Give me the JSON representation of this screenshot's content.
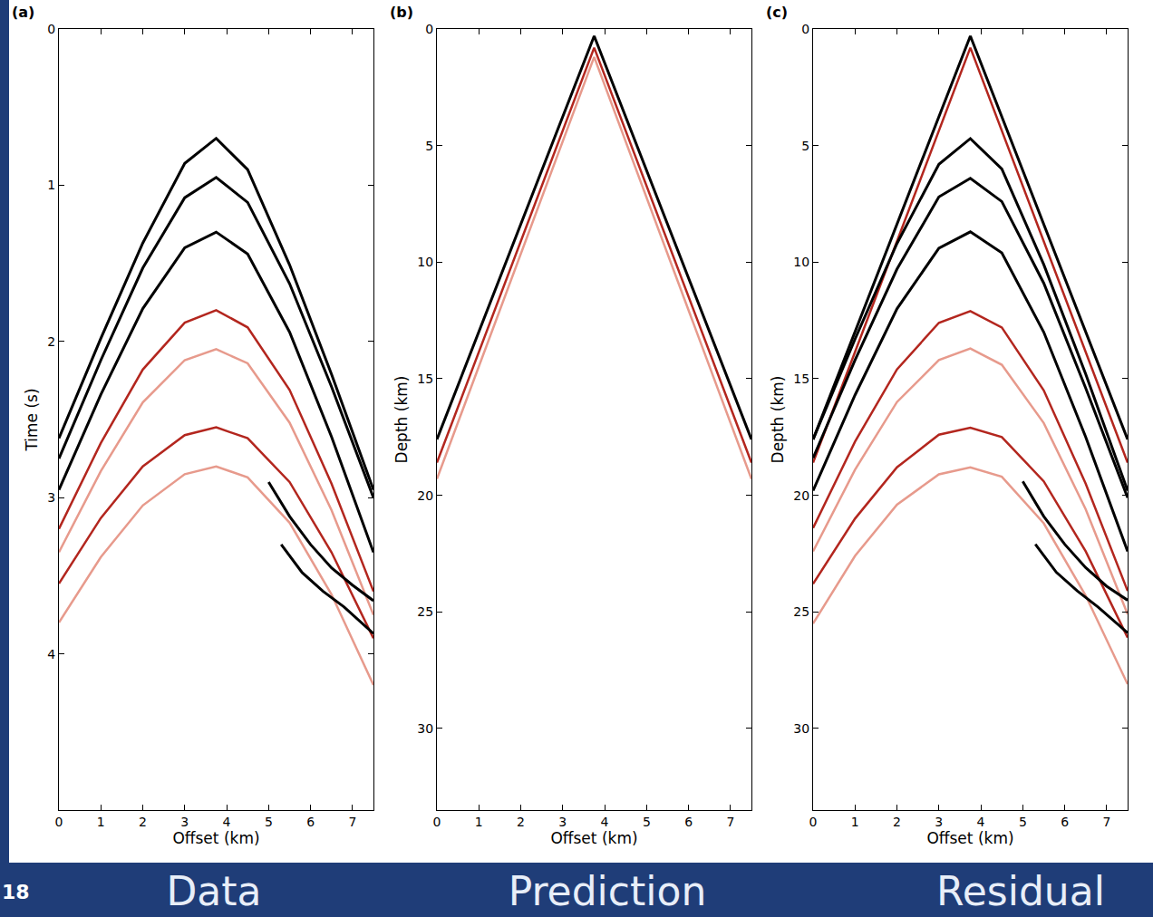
{
  "chart_data": [
    {
      "type": "line",
      "panel_label": "(a)",
      "caption": "Data",
      "x_label": "Offset (km)",
      "y_label": "Time (s)",
      "xlim": [
        0,
        7.5
      ],
      "ylim": [
        5,
        0
      ],
      "xticks": [
        0,
        1,
        2,
        3,
        4,
        5,
        6,
        7
      ],
      "yticks": [
        0,
        1,
        2,
        3,
        4
      ],
      "series": [
        {
          "color": "#000000",
          "x": [
            0,
            1,
            2,
            3,
            3.75,
            4.5,
            5.5,
            6.5,
            7.5
          ],
          "values": [
            2.62,
            1.98,
            1.37,
            0.86,
            0.7,
            0.9,
            1.51,
            2.21,
            2.95
          ]
        },
        {
          "color": "#000000",
          "x": [
            0,
            1,
            2,
            3,
            3.75,
            4.5,
            5.5,
            6.5,
            7.5
          ],
          "values": [
            2.75,
            2.12,
            1.53,
            1.08,
            0.95,
            1.11,
            1.63,
            2.29,
            3.0
          ]
        },
        {
          "color": "#000000",
          "x": [
            0,
            1,
            2,
            3,
            3.75,
            4.5,
            5.5,
            6.5,
            7.5
          ],
          "values": [
            2.95,
            2.34,
            1.79,
            1.4,
            1.3,
            1.44,
            1.94,
            2.61,
            3.35
          ]
        },
        {
          "color": "#b3261e",
          "x": [
            0,
            1,
            2,
            3,
            3.75,
            4.5,
            5.5,
            6.5,
            7.5
          ],
          "values": [
            3.2,
            2.65,
            2.18,
            1.88,
            1.8,
            1.91,
            2.31,
            2.91,
            3.6
          ]
        },
        {
          "color": "#e79a8c",
          "x": [
            0,
            1,
            2,
            3,
            3.75,
            4.5,
            5.5,
            6.5,
            7.5
          ],
          "values": [
            3.35,
            2.83,
            2.39,
            2.12,
            2.05,
            2.14,
            2.52,
            3.08,
            3.75
          ]
        },
        {
          "color": "#b3261e",
          "x": [
            0,
            1,
            2,
            3,
            3.75,
            4.5,
            5.5,
            6.5,
            7.5
          ],
          "values": [
            3.55,
            3.13,
            2.8,
            2.6,
            2.55,
            2.62,
            2.9,
            3.35,
            3.9
          ]
        },
        {
          "color": "#e79a8c",
          "x": [
            0,
            1,
            2,
            3,
            3.75,
            4.5,
            5.5,
            6.5,
            7.5
          ],
          "values": [
            3.8,
            3.38,
            3.05,
            2.85,
            2.8,
            2.87,
            3.16,
            3.62,
            4.2
          ]
        },
        {
          "color": "#000000",
          "x": [
            5.0,
            5.5,
            6.0,
            6.5,
            7.0,
            7.5
          ],
          "values": [
            2.9,
            3.12,
            3.3,
            3.45,
            3.56,
            3.66
          ]
        },
        {
          "color": "#000000",
          "x": [
            5.3,
            5.8,
            6.3,
            6.8,
            7.5
          ],
          "values": [
            3.3,
            3.48,
            3.6,
            3.7,
            3.87
          ]
        }
      ]
    },
    {
      "type": "line",
      "panel_label": "(b)",
      "caption": "Prediction",
      "x_label": "Offset (km)",
      "y_label": "Depth (km)",
      "xlim": [
        0,
        7.5
      ],
      "ylim": [
        33.5,
        0
      ],
      "xticks": [
        0,
        1,
        2,
        3,
        4,
        5,
        6,
        7
      ],
      "yticks": [
        0,
        5,
        10,
        15,
        20,
        25,
        30
      ],
      "series": [
        {
          "color": "#e79a8c",
          "x": [
            0,
            3.75,
            7.5
          ],
          "values": [
            19.3,
            1.2,
            19.3
          ]
        },
        {
          "color": "#b3261e",
          "x": [
            0,
            3.75,
            7.5
          ],
          "values": [
            18.6,
            0.8,
            18.6
          ]
        },
        {
          "color": "#000000",
          "x": [
            0,
            3.75,
            7.5
          ],
          "values": [
            17.6,
            0.3,
            17.6
          ]
        }
      ]
    },
    {
      "type": "line",
      "panel_label": "(c)",
      "caption": "Residual",
      "x_label": "Offset (km)",
      "y_label": "Depth (km)",
      "xlim": [
        0,
        7.5
      ],
      "ylim": [
        33.5,
        0
      ],
      "xticks": [
        0,
        1,
        2,
        3,
        4,
        5,
        6,
        7
      ],
      "yticks": [
        0,
        5,
        10,
        15,
        20,
        25,
        30
      ],
      "series": [
        {
          "color": "#b3261e",
          "x": [
            0,
            3.75,
            7.5
          ],
          "values": [
            18.6,
            0.8,
            18.6
          ]
        },
        {
          "color": "#000000",
          "x": [
            0,
            3.75,
            7.5
          ],
          "values": [
            17.6,
            0.3,
            17.6
          ]
        },
        {
          "color": "#000000",
          "x": [
            0,
            1,
            2,
            3,
            3.75,
            4.5,
            5.5,
            6.5,
            7.5
          ],
          "values": [
            17.6,
            13.3,
            9.2,
            5.8,
            4.7,
            6.0,
            10.1,
            14.8,
            19.8
          ]
        },
        {
          "color": "#000000",
          "x": [
            0,
            1,
            2,
            3,
            3.75,
            4.5,
            5.5,
            6.5,
            7.5
          ],
          "values": [
            18.4,
            14.2,
            10.3,
            7.2,
            6.4,
            7.4,
            10.9,
            15.4,
            20.1
          ]
        },
        {
          "color": "#000000",
          "x": [
            0,
            1,
            2,
            3,
            3.75,
            4.5,
            5.5,
            6.5,
            7.5
          ],
          "values": [
            19.8,
            15.7,
            12.0,
            9.4,
            8.7,
            9.6,
            13.0,
            17.5,
            22.4
          ]
        },
        {
          "color": "#b3261e",
          "x": [
            0,
            1,
            2,
            3,
            3.75,
            4.5,
            5.5,
            6.5,
            7.5
          ],
          "values": [
            21.4,
            17.7,
            14.6,
            12.6,
            12.1,
            12.8,
            15.5,
            19.5,
            24.1
          ]
        },
        {
          "color": "#e79a8c",
          "x": [
            0,
            1,
            2,
            3,
            3.75,
            4.5,
            5.5,
            6.5,
            7.5
          ],
          "values": [
            22.4,
            18.9,
            16.0,
            14.2,
            13.7,
            14.4,
            16.9,
            20.6,
            25.1
          ]
        },
        {
          "color": "#b3261e",
          "x": [
            0,
            1,
            2,
            3,
            3.75,
            4.5,
            5.5,
            6.5,
            7.5
          ],
          "values": [
            23.8,
            21.0,
            18.8,
            17.4,
            17.1,
            17.5,
            19.4,
            22.4,
            26.1
          ]
        },
        {
          "color": "#e79a8c",
          "x": [
            0,
            1,
            2,
            3,
            3.75,
            4.5,
            5.5,
            6.5,
            7.5
          ],
          "values": [
            25.5,
            22.6,
            20.4,
            19.1,
            18.8,
            19.2,
            21.2,
            24.3,
            28.1
          ]
        },
        {
          "color": "#000000",
          "x": [
            5.0,
            5.5,
            6.0,
            6.5,
            7.0,
            7.5
          ],
          "values": [
            19.4,
            20.9,
            22.1,
            23.1,
            23.9,
            24.5
          ]
        },
        {
          "color": "#000000",
          "x": [
            5.3,
            5.8,
            6.3,
            6.8,
            7.5
          ],
          "values": [
            22.1,
            23.3,
            24.1,
            24.8,
            25.9
          ]
        }
      ]
    }
  ],
  "slide_number": 18
}
